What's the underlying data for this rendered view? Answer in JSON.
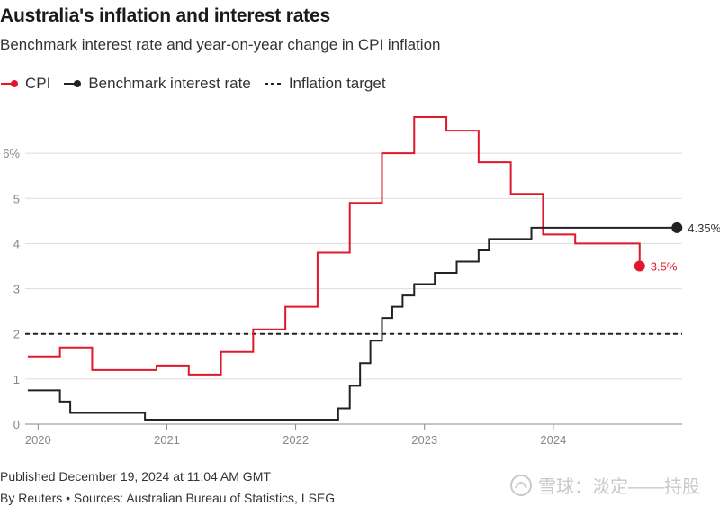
{
  "header": {
    "title": "Australia's inflation and interest rates",
    "subtitle": "Benchmark interest rate and year-on-year change in CPI inflation"
  },
  "legend": [
    {
      "label": "CPI",
      "color": "#e0182d",
      "style": "line-dot"
    },
    {
      "label": "Benchmark interest rate",
      "color": "#222222",
      "style": "line-dot"
    },
    {
      "label": "Inflation target",
      "color": "#222222",
      "style": "dashed"
    }
  ],
  "footer": {
    "published": "Published December 19, 2024 at 11:04 AM GMT",
    "credit": "By Reuters • Sources: Australian Bureau of Statistics, LSEG"
  },
  "watermark": {
    "text": "雪球：淡定——持股",
    "icon": "snowball-logo-icon"
  },
  "chart_data": {
    "type": "line",
    "ylim": [
      0,
      7
    ],
    "xlim": [
      2019.9,
      2025.0
    ],
    "y_ticks": [
      {
        "value": 0,
        "label": "0"
      },
      {
        "value": 1,
        "label": "1"
      },
      {
        "value": 2,
        "label": "2"
      },
      {
        "value": 3,
        "label": "3"
      },
      {
        "value": 4,
        "label": "4"
      },
      {
        "value": 5,
        "label": "5"
      },
      {
        "value": 6,
        "label": "6%"
      }
    ],
    "x_ticks": [
      {
        "value": 2020.0,
        "label": "2020"
      },
      {
        "value": 2021.0,
        "label": "2021"
      },
      {
        "value": 2022.0,
        "label": "2022"
      },
      {
        "value": 2023.0,
        "label": "2023"
      },
      {
        "value": 2024.0,
        "label": "2024"
      }
    ],
    "grid": true,
    "legend_position": "top-left",
    "target": {
      "name": "Inflation target",
      "value": 2.0
    },
    "series": [
      {
        "name": "CPI",
        "color": "#e0182d",
        "step": true,
        "end_label": "3.5%",
        "points": [
          [
            2019.92,
            1.5
          ],
          [
            2020.17,
            1.7
          ],
          [
            2020.42,
            1.2
          ],
          [
            2020.92,
            1.3
          ],
          [
            2021.17,
            1.1
          ],
          [
            2021.42,
            1.6
          ],
          [
            2021.67,
            2.1
          ],
          [
            2021.92,
            2.6
          ],
          [
            2022.17,
            3.8
          ],
          [
            2022.42,
            4.9
          ],
          [
            2022.67,
            6.0
          ],
          [
            2022.92,
            6.8
          ],
          [
            2023.17,
            6.5
          ],
          [
            2023.42,
            5.8
          ],
          [
            2023.67,
            5.1
          ],
          [
            2023.92,
            4.2
          ],
          [
            2024.17,
            4.0
          ],
          [
            2024.42,
            4.0
          ],
          [
            2024.67,
            3.5
          ]
        ]
      },
      {
        "name": "Benchmark interest rate",
        "color": "#222222",
        "step": true,
        "end_label": "4.35%",
        "points": [
          [
            2019.92,
            0.75
          ],
          [
            2020.17,
            0.5
          ],
          [
            2020.25,
            0.25
          ],
          [
            2020.83,
            0.1
          ],
          [
            2022.33,
            0.35
          ],
          [
            2022.42,
            0.85
          ],
          [
            2022.5,
            1.35
          ],
          [
            2022.58,
            1.85
          ],
          [
            2022.67,
            2.35
          ],
          [
            2022.75,
            2.6
          ],
          [
            2022.83,
            2.85
          ],
          [
            2022.92,
            3.1
          ],
          [
            2023.08,
            3.35
          ],
          [
            2023.25,
            3.6
          ],
          [
            2023.42,
            3.85
          ],
          [
            2023.5,
            4.1
          ],
          [
            2023.83,
            4.35
          ],
          [
            2024.96,
            4.35
          ]
        ]
      }
    ]
  }
}
